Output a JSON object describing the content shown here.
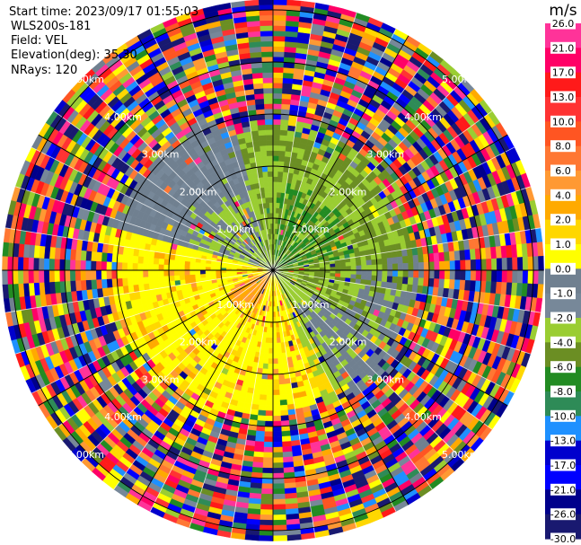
{
  "info": {
    "start_time": "Start time: 2023/09/17 01:55:03",
    "instrument": "WLS200s-181",
    "field": "Field: VEL",
    "elevation": "Elevation(deg): 35.30",
    "nrays": "NRays: 120"
  },
  "chart_data": {
    "type": "heatmap",
    "projection": "polar (PPI)",
    "field": "VEL",
    "n_rays": 120,
    "range_rings": [
      {
        "value": 1.0,
        "label": "1.00km"
      },
      {
        "value": 2.0,
        "label": "2.00km"
      },
      {
        "value": 3.0,
        "label": "3.00km"
      },
      {
        "value": 4.0,
        "label": "4.00km"
      },
      {
        "value": 5.0,
        "label": "5.00km"
      }
    ],
    "max_range_km": 5.2,
    "colorbar": {
      "unit": "m/s",
      "ticks": [
        "26.0",
        "21.0",
        "17.0",
        "13.0",
        "10.0",
        "8.0",
        "6.0",
        "4.0",
        "2.0",
        "1.0",
        "0.0",
        "-1.0",
        "-2.0",
        "-4.0",
        "-6.0",
        "-8.0",
        "-10.0",
        "-13.0",
        "-17.0",
        "-21.0",
        "-26.0",
        "-30.0"
      ],
      "colors": [
        "#ff3399",
        "#ff0066",
        "#ff1a1a",
        "#ff3333",
        "#ff5522",
        "#ff7733",
        "#ff9933",
        "#ffaa00",
        "#ffd700",
        "#ffff00",
        "#708090",
        "#778899",
        "#9acd32",
        "#6b8e23",
        "#228b22",
        "#2e8b57",
        "#1e90ff",
        "#0000cd",
        "#0000ff",
        "#00008b",
        "#191970",
        "#191970"
      ]
    },
    "sectors": [
      {
        "from_deg": -10,
        "to_deg": 80,
        "near_velocity": "0.0 to 1.0 (grey)"
      },
      {
        "from_deg": 80,
        "to_deg": 160,
        "near_velocity": "-1.0 to -6.0 (green)"
      },
      {
        "from_deg": 160,
        "to_deg": 215,
        "near_velocity": "-1.0 to -2.0 / 0.0"
      },
      {
        "from_deg": 215,
        "to_deg": 350,
        "near_velocity": "2.0 to 4.0 (yellow/orange)"
      }
    ]
  }
}
